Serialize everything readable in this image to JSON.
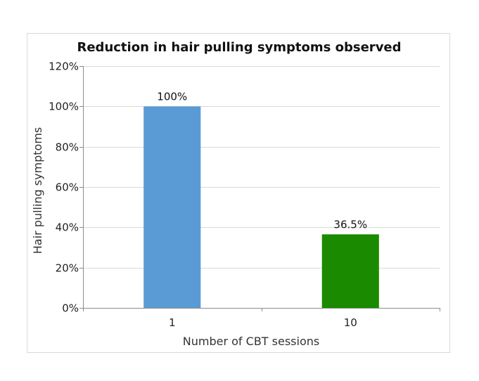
{
  "chart_data": {
    "type": "bar",
    "title": "Reduction in hair pulling symptoms observed",
    "xlabel": "Number of CBT sessions",
    "ylabel": "Hair pulling symptoms",
    "categories": [
      "1",
      "10"
    ],
    "values": [
      100,
      36.5
    ],
    "data_labels": [
      "100%",
      "36.5%"
    ],
    "bar_colors": [
      "#5b9bd5",
      "#1a8a00"
    ],
    "ylim": [
      0,
      120
    ],
    "yticks": [
      0,
      20,
      40,
      60,
      80,
      100,
      120
    ],
    "ytick_labels": [
      "0%",
      "20%",
      "40%",
      "60%",
      "80%",
      "100%",
      "120%"
    ],
    "grid": true,
    "legend": "none"
  }
}
